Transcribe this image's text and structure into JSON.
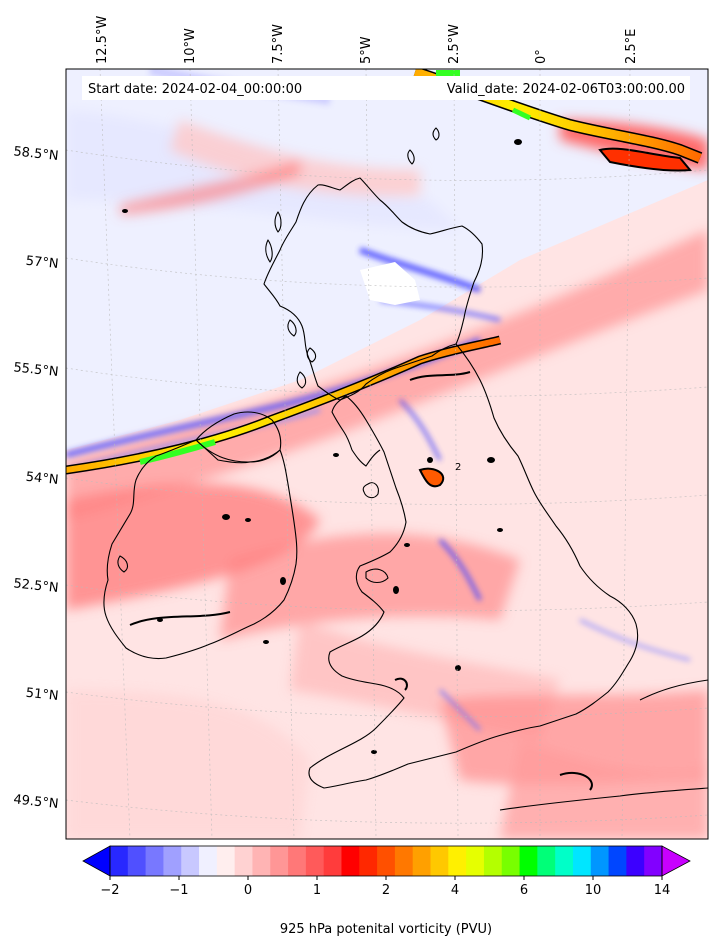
{
  "map": {
    "header": {
      "start": "Start date: 2024-02-04_00:00:00",
      "valid": "Valid_date: 2024-02-06T03:00:00.00"
    },
    "lon_labels": [
      "12.5°W",
      "10°W",
      "7.5°W",
      "5°W",
      "2.5°W",
      "0°",
      "2.5°E"
    ],
    "lat_labels": [
      "58.5°N",
      "57°N",
      "55.5°N",
      "54°N",
      "52.5°N",
      "51°N",
      "49.5°N"
    ],
    "contour_label": "2",
    "colorbar": {
      "label": "925 hPa potenital vorticity (PVU)",
      "tick_labels": [
        "−2",
        "−1",
        "0",
        "1",
        "2",
        "4",
        "6",
        "10",
        "14"
      ],
      "colors": [
        "#0000ff",
        "#2828ff",
        "#5050ff",
        "#7878ff",
        "#a0a0ff",
        "#c8c8ff",
        "#f0f0ff",
        "#ffeeee",
        "#ffd2d2",
        "#ffb4b4",
        "#ff9696",
        "#ff7878",
        "#ff5a5a",
        "#ff3c3c",
        "#ff0000",
        "#ff2800",
        "#ff5000",
        "#ff7800",
        "#ffa000",
        "#ffc800",
        "#fff000",
        "#e6ff00",
        "#b4ff00",
        "#78ff00",
        "#00ff00",
        "#00ff78",
        "#00ffc8",
        "#00e6ff",
        "#0096ff",
        "#0046ff",
        "#3c00ff",
        "#8200ff",
        "#c800ff"
      ]
    }
  }
}
